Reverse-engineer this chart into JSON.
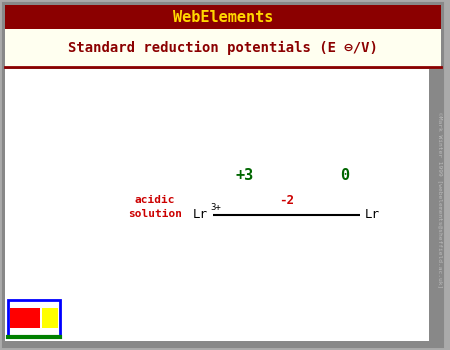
{
  "title_bar_text": "WebElements",
  "title_bar_bg": "#8B0000",
  "title_bar_fg": "#FFD700",
  "subtitle_text": "Standard reduction potentials (E ⊖/V)",
  "subtitle_bg": "#FFFFF0",
  "subtitle_fg": "#8B0000",
  "main_bg": "#FFFFFF",
  "border_color": "#AAAAAA",
  "inner_border_color": "#8B0000",
  "acidic_label": "acidic\nsolution",
  "acidic_color": "#CC0000",
  "ox_states": [
    "+3",
    "0"
  ],
  "ox_state_color": "#006600",
  "potential_label": "-2",
  "potential_color": "#CC0000",
  "watermark": "©Mark Winter 1999 [webelements@sheffield.ac.uk]",
  "watermark_color": "#BBBBBB"
}
